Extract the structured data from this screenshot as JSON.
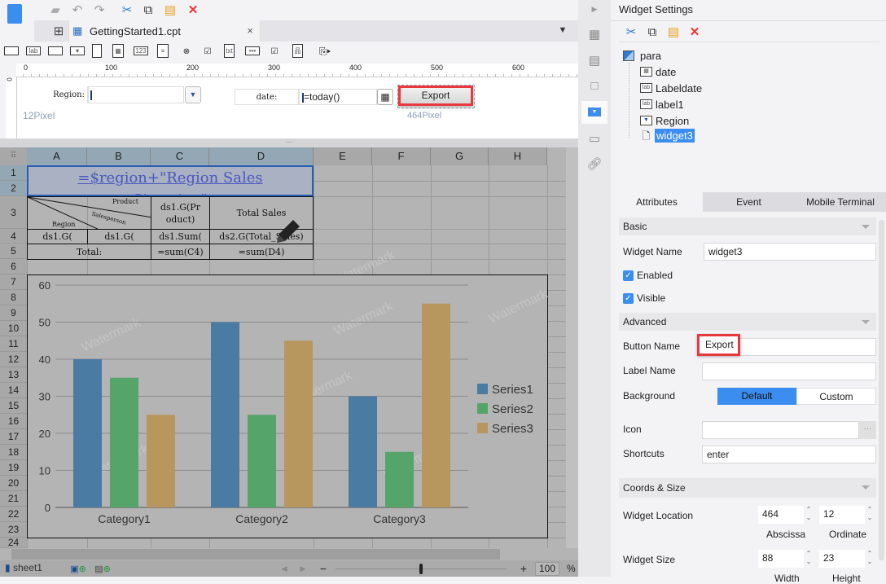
{
  "toolbar": {
    "icons": [
      "save-icon",
      "undo-icon",
      "redo-icon",
      "cut-icon",
      "copy-icon",
      "paste-icon",
      "delete-icon"
    ]
  },
  "tab": {
    "name": "GettingStarted1.cpt"
  },
  "ruler": {
    "ticks": [
      "0",
      "100",
      "200",
      "300",
      "400",
      "500",
      "600"
    ],
    "vertical_start": "0"
  },
  "param_pane": {
    "region_label": "Region:",
    "location_hint_y": "12Pixel",
    "location_hint_x": "464Pixel",
    "date_label": "date:",
    "date_value": "=today()",
    "export_button": "Export"
  },
  "sheet": {
    "columns": [
      "A",
      "B",
      "C",
      "D",
      "E",
      "F",
      "G",
      "H"
    ],
    "rows": [
      "1",
      "2",
      "3",
      "4",
      "5",
      "6",
      "7",
      "8",
      "9",
      "10",
      "11",
      "12",
      "13",
      "14",
      "15",
      "16",
      "17",
      "18",
      "19",
      "20",
      "21",
      "22",
      "23",
      "24"
    ],
    "title_formula": "=$region+\"Region Sales Situation\"",
    "slash_header": {
      "product": "Product",
      "salesperson": "Salesperson",
      "region": "Region"
    },
    "c3": "ds1.G(Product)",
    "d3": "Total Sales",
    "a4": "ds1.G(",
    "b4": "ds1.G(",
    "c4": "ds1.Sum(",
    "d4": "ds2.G(Total_Sales)",
    "a5": "Total:",
    "c5": "=sum(C4)",
    "d5": "=sum(D4)",
    "watermark": "Watermark"
  },
  "chart_data": {
    "type": "bar",
    "categories": [
      "Category1",
      "Category2",
      "Category3"
    ],
    "series": [
      {
        "name": "Series1",
        "values": [
          40,
          50,
          30
        ],
        "color": "#4a7ba3"
      },
      {
        "name": "Series2",
        "values": [
          35,
          25,
          15
        ],
        "color": "#55a46a"
      },
      {
        "name": "Series3",
        "values": [
          25,
          45,
          55
        ],
        "color": "#b8975f"
      }
    ],
    "ylim": [
      0,
      60
    ],
    "yticks": [
      "0",
      "10",
      "20",
      "30",
      "40",
      "50",
      "60"
    ],
    "grid": true,
    "legend": "right"
  },
  "bottom": {
    "sheet_tab": "sheet1",
    "zoom": "100",
    "zoom_unit": "%",
    "zoom_level": 0.5
  },
  "panel": {
    "title": "Widget Settings",
    "tree": [
      {
        "label": "para",
        "icon": "para-icon"
      },
      {
        "label": "date",
        "icon": "calendar-icon"
      },
      {
        "label": "Labeldate",
        "icon": "label-icon"
      },
      {
        "label": "label1",
        "icon": "label-icon"
      },
      {
        "label": "Region",
        "icon": "combo-icon"
      },
      {
        "label": "widget3",
        "icon": "button-icon"
      }
    ],
    "tabs": [
      "Attributes",
      "Event",
      "Mobile Terminal"
    ],
    "basic": "Basic",
    "widget_name_label": "Widget Name",
    "widget_name": "widget3",
    "enabled": "Enabled",
    "visible": "Visible",
    "advanced": "Advanced",
    "button_name_label": "Button Name",
    "button_name": "Export",
    "label_name_label": "Label Name",
    "label_name": "",
    "background_label": "Background",
    "bg_default": "Default",
    "bg_custom": "Custom",
    "icon_label": "Icon",
    "icon_browse": "···",
    "shortcuts_label": "Shortcuts",
    "shortcuts": "enter",
    "coords": "Coords & Size",
    "location_label": "Widget Location",
    "abscissa": "464",
    "ordinate": "12",
    "abscissa_label": "Abscissa",
    "ordinate_label": "Ordinate",
    "size_label": "Widget Size",
    "width": "88",
    "height": "23",
    "width_label": "Width",
    "height_label": "Height"
  },
  "colors": {
    "accent": "#3b8df0",
    "highlight": "#e8383d"
  }
}
